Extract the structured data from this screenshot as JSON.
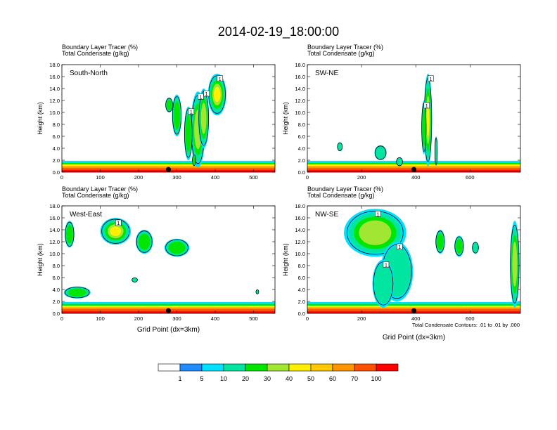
{
  "title": "2014-02-19_18:00:00",
  "colorbar": {
    "colors": [
      "#ffffff",
      "#1f8cff",
      "#00e1ff",
      "#00e6a0",
      "#00e600",
      "#a0e632",
      "#fff000",
      "#ffc800",
      "#ff9600",
      "#ff5000",
      "#ff0000"
    ],
    "labels": [
      "1",
      "5",
      "10",
      "20",
      "30",
      "40",
      "50",
      "60",
      "70",
      "100"
    ]
  },
  "footnote": "Total Condensate Contours: .01 to .01 by .000",
  "chart_data": [
    {
      "type": "heatmap",
      "panel": "South-North",
      "label_line1": "Boundary Layer Tracer    (%)",
      "label_line2": "Total Condensate    (g/kg)",
      "xlabel": "",
      "ylabel": "Height (km)",
      "xlim": [
        0,
        556
      ],
      "ylim": [
        0,
        18
      ],
      "xticks": [
        "0",
        "100",
        "200",
        "300",
        "400",
        "500"
      ],
      "xtick_values": [
        0,
        100,
        200,
        300,
        400,
        500
      ],
      "yticks": [
        "0.0",
        "2.0",
        "4.0",
        "6.0",
        "8.0",
        "10.0",
        "12.0",
        "14.0",
        "16.0",
        "18.0"
      ],
      "marker_x": 278,
      "contour_labels": [
        "1",
        "1",
        "1",
        "1"
      ],
      "blobs": [
        {
          "x": 355,
          "w": 38,
          "y0": 0.8,
          "y1": 13.5,
          "level": 4
        },
        {
          "x": 330,
          "w": 22,
          "y0": 2,
          "y1": 11,
          "level": 3
        },
        {
          "x": 405,
          "w": 48,
          "y0": 9.5,
          "y1": 16.5,
          "level": 5
        },
        {
          "x": 370,
          "w": 28,
          "y0": 4,
          "y1": 14,
          "level": 4
        },
        {
          "x": 300,
          "w": 25,
          "y0": 6,
          "y1": 13,
          "level": 3
        },
        {
          "x": 280,
          "w": 20,
          "y0": 10,
          "y1": 12.5,
          "level": 3
        },
        {
          "x": 345,
          "w": 10,
          "y0": 1,
          "y1": 3,
          "level": 3
        }
      ]
    },
    {
      "type": "heatmap",
      "panel": "SW-NE",
      "label_line1": "Boundary Layer Tracer    (%)",
      "label_line2": "Total Condensate    (g/kg)",
      "xlabel": "",
      "ylabel": "Height (km)",
      "xlim": [
        0,
        786
      ],
      "ylim": [
        0,
        18
      ],
      "xticks": [
        "0",
        "200",
        "400",
        "600"
      ],
      "xtick_values": [
        0,
        200,
        400,
        600
      ],
      "yticks": [
        "0.0",
        "2.0",
        "4.0",
        "6.0",
        "8.0",
        "10.0",
        "12.0",
        "14.0",
        "16.0",
        "18.0"
      ],
      "marker_x": 393,
      "contour_labels": [
        "1",
        "1"
      ],
      "blobs": [
        {
          "x": 445,
          "w": 30,
          "y0": 1,
          "y1": 16.5,
          "level": 5
        },
        {
          "x": 430,
          "w": 18,
          "y0": 3,
          "y1": 12,
          "level": 3
        },
        {
          "x": 270,
          "w": 45,
          "y0": 2,
          "y1": 4.5,
          "level": 2
        },
        {
          "x": 120,
          "w": 20,
          "y0": 3.5,
          "y1": 5,
          "level": 2
        },
        {
          "x": 475,
          "w": 10,
          "y0": 1,
          "y1": 6,
          "level": 2
        },
        {
          "x": 340,
          "w": 25,
          "y0": 1,
          "y1": 2.5,
          "level": 2
        }
      ]
    },
    {
      "type": "heatmap",
      "panel": "West-East",
      "label_line1": "Boundary Layer Tracer    (%)",
      "label_line2": "Total Condensate    (g/kg)",
      "xlabel": "Grid Point (dx=3km)",
      "ylabel": "Height (km)",
      "xlim": [
        0,
        556
      ],
      "ylim": [
        0,
        18
      ],
      "xticks": [
        "0",
        "100",
        "200",
        "300",
        "400",
        "500"
      ],
      "xtick_values": [
        0,
        100,
        200,
        300,
        400,
        500
      ],
      "yticks": [
        "0.0",
        "2.0",
        "4.0",
        "6.0",
        "8.0",
        "10.0",
        "12.0",
        "14.0",
        "16.0",
        "18.0"
      ],
      "marker_x": 278,
      "contour_labels": [
        "1"
      ],
      "blobs": [
        {
          "x": 140,
          "w": 80,
          "y0": 11.5,
          "y1": 16,
          "level": 5
        },
        {
          "x": 215,
          "w": 45,
          "y0": 10,
          "y1": 14,
          "level": 3
        },
        {
          "x": 300,
          "w": 65,
          "y0": 9.5,
          "y1": 12.5,
          "level": 3
        },
        {
          "x": 20,
          "w": 25,
          "y0": 11,
          "y1": 15.5,
          "level": 3
        },
        {
          "x": 40,
          "w": 70,
          "y0": 2.5,
          "y1": 4.5,
          "level": 3
        },
        {
          "x": 190,
          "w": 16,
          "y0": 5.2,
          "y1": 6,
          "level": 2
        },
        {
          "x": 510,
          "w": 8,
          "y0": 3.2,
          "y1": 4,
          "level": 2
        }
      ]
    },
    {
      "type": "heatmap",
      "panel": "NW-SE",
      "label_line1": "Boundary Layer Tracer    (%)",
      "label_line2": "Total Condensate    (g/kg)",
      "xlabel": "Grid Point (dx=3km)",
      "ylabel": "Height (km)",
      "xlim": [
        0,
        786
      ],
      "ylim": [
        0,
        18
      ],
      "xticks": [
        "0",
        "200",
        "400",
        "600"
      ],
      "xtick_values": [
        0,
        200,
        400,
        600
      ],
      "yticks": [
        "0.0",
        "2.0",
        "4.0",
        "6.0",
        "8.0",
        "10.0",
        "12.0",
        "14.0",
        "16.0",
        "18.0"
      ],
      "marker_x": 393,
      "contour_labels": [
        "1",
        "1",
        "1"
      ],
      "blobs": [
        {
          "x": 250,
          "w": 230,
          "y0": 9.5,
          "y1": 17.5,
          "level": 4
        },
        {
          "x": 330,
          "w": 120,
          "y0": 2,
          "y1": 12,
          "level": 2
        },
        {
          "x": 280,
          "w": 80,
          "y0": 1,
          "y1": 9,
          "level": 2
        },
        {
          "x": 490,
          "w": 35,
          "y0": 10,
          "y1": 14,
          "level": 3
        },
        {
          "x": 560,
          "w": 35,
          "y0": 9.5,
          "y1": 13,
          "level": 3
        },
        {
          "x": 765,
          "w": 35,
          "y0": 1,
          "y1": 15.5,
          "level": 4
        },
        {
          "x": 620,
          "w": 25,
          "y0": 10,
          "y1": 12,
          "level": 2
        }
      ]
    }
  ]
}
